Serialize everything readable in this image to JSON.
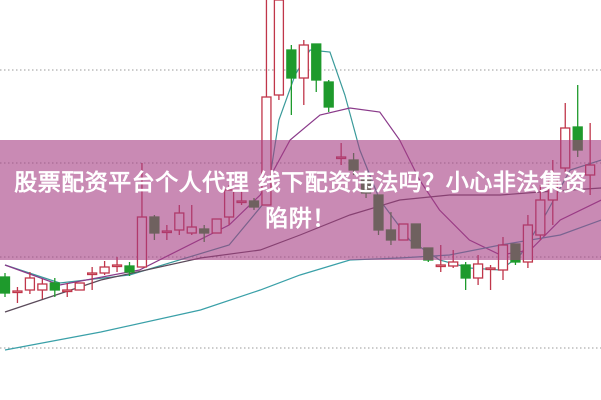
{
  "title": "股票配资平台个人代理 线下配资违法吗？小心非法集资陷阱！",
  "chart_data": {
    "type": "candlestick",
    "title": "",
    "xlabel": "",
    "ylabel": "",
    "ylim": [
      0,
      400
    ],
    "grid": "horizontal dotted",
    "colors": {
      "up": "#c0364a",
      "down": "#1e9a2c",
      "overlay": "#a53c82",
      "ma_teal": "#3a9a9a",
      "ma_purple": "#8a3a8a",
      "ma_dark": "#5a4a5a",
      "ma_long": "#3aa0a8"
    },
    "candles_ohlc": [
      [
        123,
        127,
        103,
        107
      ],
      [
        109,
        113,
        97,
        109
      ],
      [
        110,
        128,
        106,
        122
      ],
      [
        110,
        121,
        101,
        116
      ],
      [
        117,
        122,
        103,
        110
      ],
      [
        110,
        117,
        103,
        110
      ],
      [
        110,
        117,
        110,
        117
      ],
      [
        127,
        133,
        110,
        127
      ],
      [
        127,
        139,
        125,
        133
      ],
      [
        135,
        143,
        128,
        135
      ],
      [
        134,
        138,
        124,
        128
      ],
      [
        133,
        237,
        133,
        183
      ],
      [
        183,
        185,
        160,
        167
      ],
      [
        169,
        175,
        160,
        169
      ],
      [
        170,
        195,
        165,
        187
      ],
      [
        167,
        195,
        165,
        173
      ],
      [
        171,
        175,
        158,
        167
      ],
      [
        167,
        181,
        167,
        181
      ],
      [
        183,
        215,
        175,
        210
      ],
      [
        199,
        210,
        195,
        199
      ],
      [
        199,
        202,
        190,
        193
      ],
      [
        195,
        400,
        195,
        303
      ],
      [
        305,
        400,
        300,
        400
      ],
      [
        350,
        355,
        285,
        322
      ],
      [
        322,
        360,
        295,
        355
      ],
      [
        356,
        356,
        308,
        320
      ],
      [
        318,
        320,
        288,
        293
      ],
      [
        243,
        257,
        235,
        243
      ],
      [
        240,
        247,
        225,
        230
      ],
      [
        222,
        225,
        202,
        207
      ],
      [
        205,
        205,
        165,
        170
      ],
      [
        170,
        188,
        155,
        160
      ],
      [
        160,
        176,
        160,
        176
      ],
      [
        176,
        176,
        152,
        152
      ],
      [
        152,
        152,
        138,
        140
      ],
      [
        135,
        155,
        128,
        135
      ],
      [
        134,
        150,
        132,
        138
      ],
      [
        135,
        138,
        110,
        122
      ],
      [
        122,
        145,
        115,
        136
      ],
      [
        132,
        135,
        110,
        132
      ],
      [
        130,
        163,
        120,
        155
      ],
      [
        156,
        156,
        135,
        138
      ],
      [
        138,
        185,
        132,
        175
      ],
      [
        165,
        215,
        160,
        200
      ],
      [
        200,
        240,
        175,
        220
      ],
      [
        232,
        297,
        228,
        272
      ],
      [
        273,
        315,
        243,
        250
      ],
      [
        225,
        277,
        205,
        235
      ]
    ],
    "series": [
      {
        "points": [
          [
            0,
            135
          ],
          [
            4.4,
            117
          ],
          [
            10,
            125
          ],
          [
            18,
            155
          ],
          [
            21,
            200
          ],
          [
            22,
            280
          ],
          [
            23.3,
            325
          ],
          [
            24.5,
            350
          ],
          [
            26.1,
            348
          ],
          [
            27.3,
            305
          ],
          [
            28.5,
            250
          ],
          [
            30.1,
            200
          ],
          [
            32.5,
            160
          ],
          [
            34.9,
            140
          ],
          [
            37.3,
            132
          ],
          [
            39.8,
            130
          ],
          [
            41.4,
            145
          ],
          [
            43.4,
            185
          ],
          [
            45.4,
            230
          ],
          [
            47.9,
            240
          ]
        ],
        "color_key": "ma_teal"
      },
      {
        "points": [
          [
            0,
            135
          ],
          [
            4.4,
            115
          ],
          [
            10.8,
            130
          ],
          [
            18,
            175
          ],
          [
            20.5,
            205
          ],
          [
            22.9,
            260
          ],
          [
            25.3,
            285
          ],
          [
            27.7,
            292
          ],
          [
            30.1,
            288
          ],
          [
            31.7,
            260
          ],
          [
            33.3,
            220
          ],
          [
            34.9,
            190
          ],
          [
            37.3,
            160
          ],
          [
            39.8,
            145
          ],
          [
            42.2,
            150
          ],
          [
            44.6,
            180
          ],
          [
            47.9,
            200
          ]
        ],
        "color_key": "ma_purple"
      },
      {
        "points": [
          [
            0,
            88
          ],
          [
            7.7,
            120
          ],
          [
            15.7,
            142
          ],
          [
            20.5,
            150
          ],
          [
            23.7,
            165
          ],
          [
            27.7,
            185
          ],
          [
            31.7,
            200
          ],
          [
            35.7,
            205
          ],
          [
            39.8,
            205
          ],
          [
            43,
            208
          ],
          [
            47.9,
            212
          ]
        ],
        "color_key": "ma_dark"
      },
      {
        "points": [
          [
            0,
            50
          ],
          [
            7.7,
            68
          ],
          [
            15.7,
            90
          ],
          [
            20.5,
            110
          ],
          [
            23.7,
            125
          ],
          [
            27.7,
            140
          ],
          [
            31.7,
            142
          ],
          [
            35.7,
            145
          ],
          [
            39.8,
            155
          ],
          [
            44.6,
            165
          ],
          [
            47.9,
            180
          ]
        ],
        "color_key": "ma_long"
      }
    ]
  }
}
